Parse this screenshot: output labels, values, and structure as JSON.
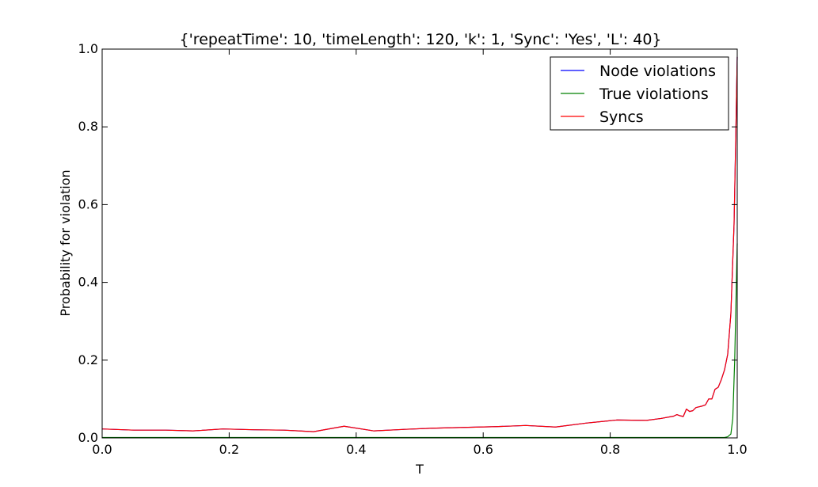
{
  "chart_data": {
    "type": "line",
    "title": "{'repeatTime': 10, 'timeLength': 120, 'k': 1, 'Sync': 'Yes', 'L': 40}",
    "xlabel": "T",
    "ylabel": "Probability for violation",
    "xlim": [
      0.0,
      1.0
    ],
    "ylim": [
      0.0,
      1.0
    ],
    "xticks": [
      "0.0",
      "0.2",
      "0.4",
      "0.6",
      "0.8",
      "1.0"
    ],
    "yticks": [
      "0.0",
      "0.2",
      "0.4",
      "0.6",
      "0.8",
      "1.0"
    ],
    "grid": false,
    "legend_position": "top-right",
    "series": [
      {
        "name": "Node violations",
        "color": "#0000ff",
        "x": [
          0.0,
          0.05,
          0.1,
          0.143,
          0.19,
          0.238,
          0.286,
          0.333,
          0.381,
          0.428,
          0.476,
          0.52,
          0.57,
          0.62,
          0.667,
          0.714,
          0.762,
          0.81,
          0.857,
          0.88,
          0.9,
          0.905,
          0.91,
          0.915,
          0.92,
          0.925,
          0.93,
          0.935,
          0.94,
          0.945,
          0.95,
          0.955,
          0.96,
          0.965,
          0.97,
          0.975,
          0.98,
          0.985,
          0.99,
          0.995,
          0.998,
          1.0
        ],
        "y": [
          0.023,
          0.02,
          0.02,
          0.018,
          0.023,
          0.021,
          0.02,
          0.016,
          0.03,
          0.018,
          0.022,
          0.025,
          0.027,
          0.029,
          0.032,
          0.028,
          0.038,
          0.046,
          0.045,
          0.05,
          0.056,
          0.06,
          0.057,
          0.055,
          0.074,
          0.068,
          0.07,
          0.078,
          0.08,
          0.082,
          0.085,
          0.1,
          0.1,
          0.125,
          0.13,
          0.15,
          0.175,
          0.215,
          0.32,
          0.55,
          0.8,
          0.98
        ]
      },
      {
        "name": "True violations",
        "color": "#008000",
        "x": [
          0.0,
          0.1,
          0.2,
          0.3,
          0.4,
          0.5,
          0.6,
          0.7,
          0.8,
          0.9,
          0.95,
          0.98,
          0.985,
          0.99,
          0.993,
          0.996,
          0.998,
          1.0
        ],
        "y": [
          0.001,
          0.001,
          0.001,
          0.001,
          0.001,
          0.001,
          0.001,
          0.001,
          0.001,
          0.001,
          0.001,
          0.001,
          0.003,
          0.01,
          0.05,
          0.2,
          0.35,
          0.5
        ]
      },
      {
        "name": "Syncs",
        "color": "#ff0000",
        "x": [
          0.0,
          0.05,
          0.1,
          0.143,
          0.19,
          0.238,
          0.286,
          0.333,
          0.381,
          0.428,
          0.476,
          0.52,
          0.57,
          0.62,
          0.667,
          0.714,
          0.762,
          0.81,
          0.857,
          0.88,
          0.9,
          0.905,
          0.91,
          0.915,
          0.92,
          0.925,
          0.93,
          0.935,
          0.94,
          0.945,
          0.95,
          0.955,
          0.96,
          0.965,
          0.97,
          0.975,
          0.98,
          0.985,
          0.99,
          0.995,
          0.998,
          1.0
        ],
        "y": [
          0.023,
          0.02,
          0.02,
          0.018,
          0.023,
          0.021,
          0.02,
          0.016,
          0.03,
          0.018,
          0.022,
          0.025,
          0.027,
          0.029,
          0.032,
          0.028,
          0.038,
          0.046,
          0.045,
          0.05,
          0.056,
          0.06,
          0.057,
          0.055,
          0.074,
          0.068,
          0.07,
          0.078,
          0.08,
          0.082,
          0.085,
          0.1,
          0.1,
          0.125,
          0.13,
          0.15,
          0.175,
          0.215,
          0.32,
          0.55,
          0.8,
          0.98
        ]
      }
    ]
  }
}
